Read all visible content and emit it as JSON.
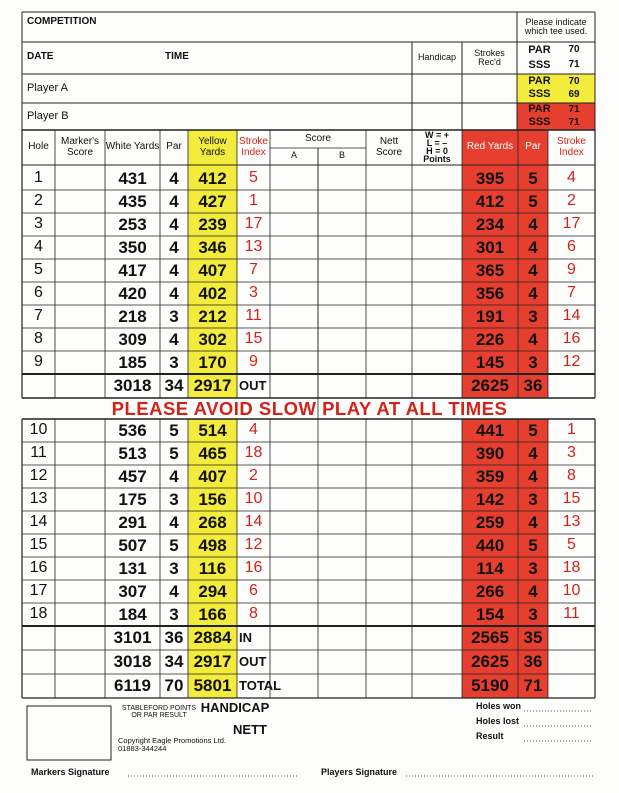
{
  "header": {
    "competition": "COMPETITION",
    "tee_note": "Please indicate which tee used.",
    "date": "DATE",
    "time": "TIME",
    "handicap": "Handicap",
    "strokes_recd": "Strokes Rec'd"
  },
  "tees": {
    "white": {
      "par_label": "PAR",
      "par": 70,
      "sss_label": "SSS",
      "sss": 71
    },
    "yellow": {
      "par_label": "PAR",
      "par": 70,
      "sss_label": "SSS",
      "sss": 69
    },
    "red": {
      "par_label": "PAR",
      "par": 71,
      "sss_label": "SSS",
      "sss": 71
    }
  },
  "players": [
    "Player A",
    "Player B"
  ],
  "columns": {
    "hole": "Hole",
    "markers_score": "Marker's Score",
    "white_yards": "White Yards",
    "par": "Par",
    "yellow_yards": "Yellow Yards",
    "stroke_index": "Stroke Index",
    "score": "Score",
    "score_a": "A",
    "score_b": "B",
    "nett_score": "Nett Score",
    "points_key": [
      "W = +",
      "L = –",
      "H = 0",
      "Points"
    ],
    "red_yards": "Red Yards",
    "red_par": "Par",
    "red_stroke_index": "Stroke Index"
  },
  "front_nine": [
    [
      1,
      431,
      4,
      412,
      5,
      395,
      5,
      4
    ],
    [
      2,
      435,
      4,
      427,
      1,
      412,
      5,
      2
    ],
    [
      3,
      253,
      4,
      239,
      17,
      234,
      4,
      17
    ],
    [
      4,
      350,
      4,
      346,
      13,
      301,
      4,
      6
    ],
    [
      5,
      417,
      4,
      407,
      7,
      365,
      4,
      9
    ],
    [
      6,
      420,
      4,
      402,
      3,
      356,
      4,
      7
    ],
    [
      7,
      218,
      3,
      212,
      11,
      191,
      3,
      14
    ],
    [
      8,
      309,
      4,
      302,
      15,
      226,
      4,
      16
    ],
    [
      9,
      185,
      3,
      170,
      9,
      145,
      3,
      12
    ]
  ],
  "out": {
    "white": 3018,
    "par": 34,
    "yellow": 2917,
    "label": "OUT",
    "red": 2625,
    "red_par": 36
  },
  "banner": "PLEASE AVOID SLOW PLAY AT ALL TIMES",
  "back_nine": [
    [
      10,
      536,
      5,
      514,
      4,
      441,
      5,
      1
    ],
    [
      11,
      513,
      5,
      465,
      18,
      390,
      4,
      3
    ],
    [
      12,
      457,
      4,
      407,
      2,
      359,
      4,
      8
    ],
    [
      13,
      175,
      3,
      156,
      10,
      142,
      3,
      15
    ],
    [
      14,
      291,
      4,
      268,
      14,
      259,
      4,
      13
    ],
    [
      15,
      507,
      5,
      498,
      12,
      440,
      5,
      5
    ],
    [
      16,
      131,
      3,
      116,
      16,
      114,
      3,
      18
    ],
    [
      17,
      307,
      4,
      294,
      6,
      266,
      4,
      10
    ],
    [
      18,
      184,
      3,
      166,
      8,
      154,
      3,
      11
    ]
  ],
  "totals": [
    {
      "white": 3101,
      "par": 36,
      "yellow": 2884,
      "label": "IN",
      "red": 2565,
      "red_par": 35
    },
    {
      "white": 3018,
      "par": 34,
      "yellow": 2917,
      "label": "OUT",
      "red": 2625,
      "red_par": 36
    },
    {
      "white": 6119,
      "par": 70,
      "yellow": 5801,
      "label": "TOTAL",
      "red": 5190,
      "red_par": 71
    }
  ],
  "footer": {
    "stableford": "STABLEFORD POINTS OR PAR RESULT",
    "handicap": "HANDICAP",
    "nett": "NETT",
    "copyright": "Copyright Eagle Promotions Ltd. 01883-344244",
    "holes_won": "Holes won",
    "holes_lost": "Holes lost",
    "result": "Result",
    "markers_signature": "Markers Signature",
    "players_signature": "Players Signature"
  }
}
